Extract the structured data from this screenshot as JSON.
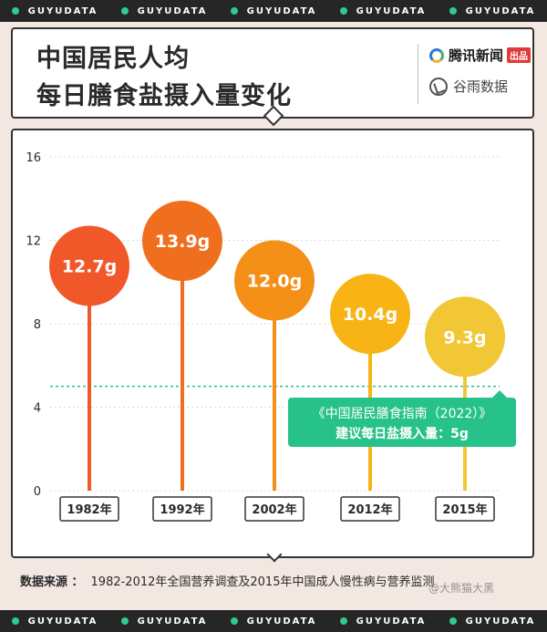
{
  "band_text": "GUYUDATA",
  "title": {
    "line1": "中国居民人均",
    "line2": "每日膳食盐摄入量变化"
  },
  "logos": {
    "tencent_name": "腾讯新闻",
    "tencent_badge": "出品",
    "guyu_name": "谷雨数据"
  },
  "source": {
    "label": "数据来源 ：",
    "text": "1982-2012年全国营养调查及2015年中国成人慢性病与营养监测"
  },
  "watermark": "@大熊猫大黑",
  "colors": {
    "band": "#262626",
    "band_dot": "#2ECC8F",
    "reference": "#27C28A",
    "axis_text": "#2A2A2A"
  },
  "chart_data": {
    "type": "bar",
    "style": "lollipop",
    "title": "中国居民人均每日膳食盐摄入量变化",
    "categories": [
      "1982年",
      "1992年",
      "2002年",
      "2012年",
      "2015年"
    ],
    "values": [
      12.7,
      13.9,
      12.0,
      10.4,
      9.3
    ],
    "value_labels": [
      "12.7g",
      "13.9g",
      "12.0g",
      "10.4g",
      "9.3g"
    ],
    "colors": [
      "#F0582A",
      "#F06F1E",
      "#F49018",
      "#F7B414",
      "#F1C736"
    ],
    "ylim": [
      0,
      16
    ],
    "yticks": [
      0,
      4,
      8,
      12,
      16
    ],
    "grid": true,
    "reference_line": {
      "value": 5,
      "label_line1": "《中国居民膳食指南（2022）》",
      "label_line2": "建议每日盐摄入量：5g"
    }
  }
}
